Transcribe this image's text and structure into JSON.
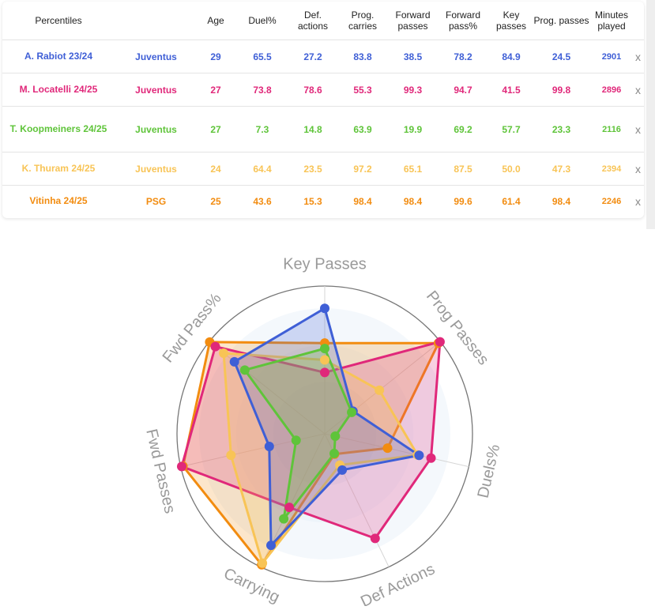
{
  "table": {
    "headers": [
      "Percentiles",
      "",
      "Age",
      "Duel%",
      "Def. actions",
      "Prog. carries",
      "Forward passes",
      "Forward pass%",
      "Key passes",
      "Prog. passes",
      "Minutes played",
      ""
    ],
    "rows": [
      {
        "player": "A. Rabiot 23/24",
        "team": "Juventus",
        "age": "29",
        "duel": "65.5",
        "def_actions": "27.2",
        "prog_carries": "83.8",
        "fwd_passes": "38.5",
        "fwd_pass_pct": "78.2",
        "key_passes": "84.9",
        "prog_passes": "24.5",
        "minutes": "2901",
        "remove": "x",
        "color": "#3f5fd6"
      },
      {
        "player": "M. Locatelli 24/25",
        "team": "Juventus",
        "age": "27",
        "duel": "73.8",
        "def_actions": "78.6",
        "prog_carries": "55.3",
        "fwd_passes": "99.3",
        "fwd_pass_pct": "94.7",
        "key_passes": "41.5",
        "prog_passes": "99.8",
        "minutes": "2896",
        "remove": "x",
        "color": "#e0287a"
      },
      {
        "player": "T. Koopmeiners 24/25",
        "team": "Juventus",
        "age": "27",
        "duel": "7.3",
        "def_actions": "14.8",
        "prog_carries": "63.9",
        "fwd_passes": "19.9",
        "fwd_pass_pct": "69.2",
        "key_passes": "57.7",
        "prog_passes": "23.3",
        "minutes": "2116",
        "remove": "x",
        "color": "#5fc43a"
      },
      {
        "player": "K. Thuram 24/25",
        "team": "Juventus",
        "age": "24",
        "duel": "64.4",
        "def_actions": "23.5",
        "prog_carries": "97.2",
        "fwd_passes": "65.1",
        "fwd_pass_pct": "87.5",
        "key_passes": "50.0",
        "prog_passes": "47.3",
        "minutes": "2394",
        "remove": "x",
        "color": "#f8c456"
      },
      {
        "player": "Vitinha 24/25",
        "team": "PSG",
        "age": "25",
        "duel": "43.6",
        "def_actions": "15.3",
        "prog_carries": "98.4",
        "fwd_passes": "98.4",
        "fwd_pass_pct": "99.6",
        "key_passes": "61.4",
        "prog_passes": "98.4",
        "minutes": "2246",
        "remove": "x",
        "color": "#f28c10"
      }
    ]
  },
  "chart_data": {
    "type": "radar",
    "axes": [
      "Key Passes",
      "Prog Passes",
      "Duels%",
      "Def Actions",
      "Carrying",
      "Fwd Passes",
      "Fwd Pass%"
    ],
    "range": [
      0,
      100
    ],
    "series": [
      {
        "name": "A. Rabiot 23/24",
        "color": "#3f5fd6",
        "values": [
          84.9,
          24.5,
          65.5,
          27.2,
          83.8,
          38.5,
          78.2
        ]
      },
      {
        "name": "M. Locatelli 24/25",
        "color": "#e0287a",
        "values": [
          41.5,
          99.8,
          73.8,
          78.6,
          55.3,
          99.3,
          94.7
        ]
      },
      {
        "name": "T. Koopmeiners 24/25",
        "color": "#5fc43a",
        "values": [
          57.7,
          23.3,
          7.3,
          14.8,
          63.9,
          19.9,
          69.2
        ]
      },
      {
        "name": "K. Thuram 24/25",
        "color": "#f8c456",
        "values": [
          50.0,
          47.3,
          64.4,
          23.5,
          97.2,
          65.1,
          87.5
        ]
      },
      {
        "name": "Vitinha 24/25",
        "color": "#f28c10",
        "values": [
          61.4,
          98.4,
          43.6,
          15.3,
          98.4,
          98.4,
          99.6
        ]
      }
    ]
  }
}
